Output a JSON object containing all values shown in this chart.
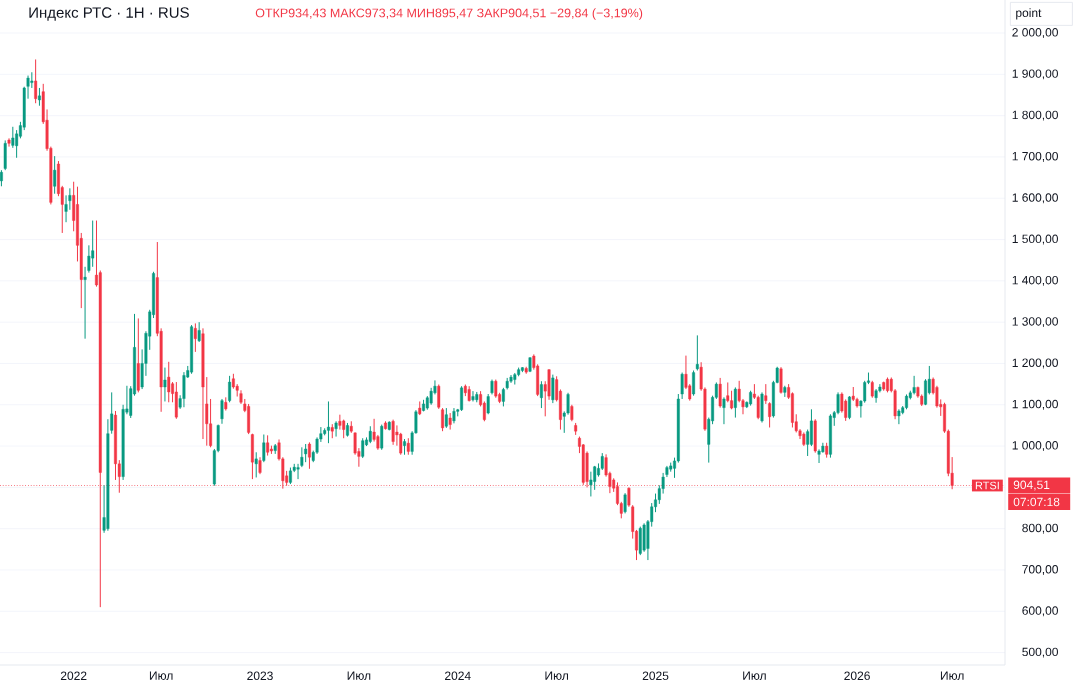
{
  "chart_data": {
    "type": "candlestick",
    "title": "Индекс РТС · 1Н · RUS",
    "subtitle": "ОТКР934,43 МАКС973,34 МИН895,47 ЗАКР904,51 −29,84 (−3,19%)",
    "ylabel": "point",
    "categories": [
      null,
      null,
      null,
      null,
      null,
      null,
      null,
      null,
      null,
      null,
      null,
      null,
      null,
      null,
      null,
      null,
      null,
      null,
      null,
      "2022",
      null,
      null,
      null,
      null,
      null,
      null,
      null,
      null,
      null,
      null,
      null,
      null,
      null,
      null,
      null,
      null,
      null,
      null,
      null,
      null,
      null,
      null,
      "Июл",
      null,
      null,
      null,
      null,
      null,
      null,
      null,
      null,
      null,
      null,
      null,
      null,
      null,
      null,
      null,
      null,
      null,
      null,
      null,
      null,
      null,
      null,
      null,
      null,
      null,
      "2023",
      null,
      null,
      null,
      null,
      null,
      null,
      null,
      null,
      null,
      null,
      null,
      null,
      null,
      null,
      null,
      null,
      null,
      null,
      null,
      null,
      null,
      null,
      null,
      null,
      null,
      "Июл",
      null,
      null,
      null,
      null,
      null,
      null,
      null,
      null,
      null,
      null,
      null,
      null,
      null,
      null,
      null,
      null,
      null,
      null,
      null,
      null,
      null,
      null,
      null,
      null,
      null,
      "2024",
      null,
      null,
      null,
      null,
      null,
      null,
      null,
      null,
      null,
      null,
      null,
      null,
      null,
      null,
      null,
      null,
      null,
      null,
      null,
      null,
      null,
      null,
      null,
      null,
      null,
      "Июл",
      null,
      null,
      null,
      null,
      null,
      null,
      null,
      null,
      null,
      null,
      null,
      null,
      null,
      null,
      null,
      null,
      null,
      null,
      null,
      null,
      null,
      null,
      null,
      null,
      null,
      "2025",
      null,
      null,
      null,
      null,
      null,
      null,
      null,
      null,
      null,
      null,
      null,
      null,
      null,
      null,
      null,
      null,
      null,
      null,
      null,
      null,
      null,
      null,
      null,
      null,
      null,
      "Июл",
      null,
      null,
      null,
      null,
      null,
      null,
      null,
      null,
      null,
      null,
      null,
      null,
      null,
      null,
      null,
      null,
      null,
      null,
      null,
      null,
      null,
      null,
      null,
      null,
      null,
      null,
      "2026",
      null,
      null,
      null,
      null,
      null,
      null,
      null,
      null,
      null,
      null,
      null,
      null,
      null,
      null,
      null,
      null,
      null,
      null,
      null,
      null,
      null,
      null,
      null,
      null,
      "Июл"
    ],
    "ohlc": [
      [
        1642,
        1668,
        1629,
        1663
      ],
      [
        1672,
        1740,
        1668,
        1733
      ],
      [
        1741,
        1745,
        1725,
        1733
      ],
      [
        1728,
        1773,
        1722,
        1746
      ],
      [
        1727,
        1765,
        1698,
        1756
      ],
      [
        1750,
        1785,
        1745,
        1776
      ],
      [
        1772,
        1870,
        1765,
        1867
      ],
      [
        1871,
        1897,
        1841,
        1891
      ],
      [
        1880,
        1905,
        1867,
        1884
      ],
      [
        1884,
        1936,
        1830,
        1841
      ],
      [
        1838,
        1867,
        1824,
        1848
      ],
      [
        1858,
        1877,
        1780,
        1785
      ],
      [
        1789,
        1815,
        1715,
        1720
      ],
      [
        1721,
        1725,
        1585,
        1590
      ],
      [
        1629,
        1702,
        1611,
        1668
      ],
      [
        1683,
        1690,
        1605,
        1611
      ],
      [
        1626,
        1630,
        1516,
        1585
      ],
      [
        1568,
        1607,
        1542,
        1585
      ],
      [
        1594,
        1624,
        1572,
        1607
      ],
      [
        1607,
        1640,
        1520,
        1546
      ],
      [
        1585,
        1628,
        1447,
        1486
      ],
      [
        1503,
        1516,
        1334,
        1403
      ],
      [
        1403,
        1434,
        1260,
        1409
      ],
      [
        1425,
        1486,
        1420,
        1460
      ],
      [
        1455,
        1546,
        1434,
        1473
      ],
      [
        1414,
        1546,
        1386,
        1390
      ],
      [
        1420,
        1425,
        610,
        936
      ],
      [
        796,
        905,
        790,
        827
      ],
      [
        800,
        1065,
        795,
        1030
      ],
      [
        1038,
        1130,
        1030,
        1078
      ],
      [
        1075,
        1085,
        918,
        957
      ],
      [
        957,
        966,
        887,
        926
      ],
      [
        926,
        1100,
        918,
        1089
      ],
      [
        1082,
        1146,
        1077,
        1090
      ],
      [
        1074,
        1145,
        1068,
        1139
      ],
      [
        1126,
        1320,
        1122,
        1239
      ],
      [
        1200,
        1309,
        1130,
        1135
      ],
      [
        1143,
        1234,
        1138,
        1200
      ],
      [
        1200,
        1278,
        1170,
        1273
      ],
      [
        1266,
        1330,
        1233,
        1325
      ],
      [
        1318,
        1422,
        1310,
        1418
      ],
      [
        1408,
        1494,
        1266,
        1273
      ],
      [
        1278,
        1285,
        1083,
        1143
      ],
      [
        1143,
        1190,
        1108,
        1160
      ],
      [
        1167,
        1204,
        1106,
        1131
      ],
      [
        1151,
        1155,
        1106,
        1127
      ],
      [
        1131,
        1155,
        1066,
        1070
      ],
      [
        1094,
        1123,
        1090,
        1115
      ],
      [
        1115,
        1179,
        1094,
        1171
      ],
      [
        1167,
        1194,
        1165,
        1183
      ],
      [
        1179,
        1293,
        1175,
        1289
      ],
      [
        1285,
        1297,
        1228,
        1260
      ],
      [
        1255,
        1300,
        1252,
        1280
      ],
      [
        1272,
        1285,
        1017,
        1143
      ],
      [
        1102,
        1167,
        1001,
        1054
      ],
      [
        1054,
        1114,
        997,
        1001
      ],
      [
        908,
        993,
        904,
        989
      ],
      [
        989,
        1052,
        985,
        1050
      ],
      [
        1066,
        1114,
        1054,
        1110
      ],
      [
        1106,
        1118,
        1086,
        1090
      ],
      [
        1110,
        1170,
        1106,
        1155
      ],
      [
        1163,
        1175,
        1139,
        1143
      ],
      [
        1145,
        1150,
        1120,
        1135
      ],
      [
        1127,
        1135,
        1102,
        1106
      ],
      [
        1102,
        1114,
        1082,
        1086
      ],
      [
        1096,
        1102,
        1029,
        1033
      ],
      [
        1028,
        1030,
        920,
        961
      ],
      [
        957,
        985,
        924,
        969
      ],
      [
        965,
        973,
        932,
        936
      ],
      [
        965,
        1028,
        961,
        1008
      ],
      [
        1008,
        1026,
        977,
        985
      ],
      [
        993,
        1001,
        981,
        988
      ],
      [
        989,
        1005,
        981,
        1001
      ],
      [
        1008,
        1016,
        965,
        969
      ],
      [
        969,
        973,
        897,
        916
      ],
      [
        928,
        940,
        904,
        912
      ],
      [
        912,
        948,
        908,
        940
      ],
      [
        941,
        957,
        937,
        949
      ],
      [
        944,
        957,
        920,
        948
      ],
      [
        953,
        997,
        949,
        973
      ],
      [
        981,
        1005,
        961,
        993
      ],
      [
        1005,
        1009,
        945,
        973
      ],
      [
        965,
        989,
        961,
        985
      ],
      [
        985,
        1021,
        981,
        1017
      ],
      [
        1017,
        1046,
        1010,
        1030
      ],
      [
        1030,
        1043,
        1026,
        1038
      ],
      [
        1038,
        1108,
        1007,
        1046
      ],
      [
        1045,
        1053,
        1019,
        1036
      ],
      [
        1042,
        1060,
        1023,
        1056
      ],
      [
        1060,
        1076,
        1040,
        1050
      ],
      [
        1061,
        1064,
        1019,
        1040
      ],
      [
        1026,
        1056,
        1023,
        1050
      ],
      [
        1048,
        1060,
        1032,
        1036
      ],
      [
        1032,
        1033,
        979,
        983
      ],
      [
        987,
        995,
        950,
        975
      ],
      [
        975,
        1019,
        971,
        1013
      ],
      [
        1003,
        1021,
        1000,
        1015
      ],
      [
        1011,
        1048,
        1007,
        1036
      ],
      [
        1034,
        1066,
        1011,
        1016
      ],
      [
        1023,
        1027,
        991,
        995
      ],
      [
        995,
        1052,
        991,
        1048
      ],
      [
        1056,
        1060,
        1040,
        1042
      ],
      [
        1040,
        1060,
        1038,
        1058
      ],
      [
        1060,
        1064,
        1003,
        1011
      ],
      [
        1034,
        1050,
        1001,
        1027
      ],
      [
        1029,
        1032,
        979,
        983
      ],
      [
        1001,
        1017,
        979,
        1011
      ],
      [
        1007,
        1019,
        979,
        987
      ],
      [
        987,
        1036,
        979,
        1032
      ],
      [
        1032,
        1087,
        1030,
        1083
      ],
      [
        1092,
        1108,
        1075,
        1078
      ],
      [
        1086,
        1112,
        1084,
        1102
      ],
      [
        1092,
        1121,
        1088,
        1117
      ],
      [
        1104,
        1141,
        1100,
        1133
      ],
      [
        1129,
        1159,
        1125,
        1145
      ],
      [
        1145,
        1149,
        1090,
        1094
      ],
      [
        1088,
        1092,
        1036,
        1044
      ],
      [
        1048,
        1092,
        1044,
        1076
      ],
      [
        1068,
        1080,
        1040,
        1052
      ],
      [
        1061,
        1092,
        1055,
        1084
      ],
      [
        1084,
        1090,
        1072,
        1088
      ],
      [
        1088,
        1145,
        1085,
        1141
      ],
      [
        1145,
        1149,
        1121,
        1129
      ],
      [
        1137,
        1145,
        1108,
        1110
      ],
      [
        1112,
        1133,
        1108,
        1120
      ],
      [
        1112,
        1131,
        1106,
        1125
      ],
      [
        1125,
        1133,
        1096,
        1100
      ],
      [
        1104,
        1108,
        1060,
        1064
      ],
      [
        1080,
        1126,
        1077,
        1120
      ],
      [
        1129,
        1161,
        1125,
        1157
      ],
      [
        1157,
        1161,
        1117,
        1121
      ],
      [
        1125,
        1129,
        1104,
        1108
      ],
      [
        1108,
        1141,
        1096,
        1137
      ],
      [
        1141,
        1165,
        1137,
        1157
      ],
      [
        1157,
        1172,
        1153,
        1167
      ],
      [
        1161,
        1177,
        1149,
        1173
      ],
      [
        1173,
        1190,
        1169,
        1185
      ],
      [
        1183,
        1191,
        1179,
        1190
      ],
      [
        1188,
        1192,
        1175,
        1179
      ],
      [
        1181,
        1215,
        1179,
        1214
      ],
      [
        1218,
        1222,
        1185,
        1190
      ],
      [
        1194,
        1198,
        1121,
        1125
      ],
      [
        1117,
        1157,
        1092,
        1149
      ],
      [
        1149,
        1157,
        1072,
        1133
      ],
      [
        1185,
        1186,
        1112,
        1121
      ],
      [
        1112,
        1173,
        1104,
        1165
      ],
      [
        1161,
        1169,
        1108,
        1112
      ],
      [
        1133,
        1137,
        1040,
        1064
      ],
      [
        1072,
        1084,
        1032,
        1080
      ],
      [
        1080,
        1129,
        1076,
        1125
      ],
      [
        1096,
        1100,
        1060,
        1064
      ],
      [
        1050,
        1056,
        1027,
        1036
      ],
      [
        1019,
        1023,
        983,
        999
      ],
      [
        1003,
        1005,
        906,
        912
      ],
      [
        983,
        987,
        900,
        914
      ],
      [
        906,
        938,
        878,
        918
      ],
      [
        914,
        952,
        894,
        950
      ],
      [
        930,
        958,
        926,
        946
      ],
      [
        946,
        983,
        942,
        975
      ],
      [
        972,
        980,
        926,
        930
      ],
      [
        934,
        938,
        886,
        902
      ],
      [
        918,
        922,
        889,
        898
      ],
      [
        902,
        912,
        857,
        861
      ],
      [
        861,
        865,
        825,
        837
      ],
      [
        841,
        886,
        837,
        882
      ],
      [
        898,
        900,
        853,
        857
      ],
      [
        853,
        857,
        776,
        793
      ],
      [
        794,
        797,
        724,
        748
      ],
      [
        740,
        805,
        736,
        801
      ],
      [
        748,
        813,
        744,
        809
      ],
      [
        752,
        821,
        724,
        817
      ],
      [
        817,
        862,
        805,
        853
      ],
      [
        853,
        885,
        840,
        870
      ],
      [
        870,
        905,
        860,
        897
      ],
      [
        897,
        935,
        885,
        925
      ],
      [
        931,
        952,
        925,
        948
      ],
      [
        944,
        960,
        938,
        952
      ],
      [
        946,
        972,
        923,
        964
      ],
      [
        964,
        1126,
        960,
        1114
      ],
      [
        1126,
        1178,
        1114,
        1174
      ],
      [
        1174,
        1219,
        1138,
        1142
      ],
      [
        1146,
        1150,
        1110,
        1114
      ],
      [
        1126,
        1183,
        1122,
        1178
      ],
      [
        1187,
        1268,
        1183,
        1198
      ],
      [
        1191,
        1203,
        1134,
        1138
      ],
      [
        1138,
        1142,
        1037,
        1041
      ],
      [
        1004,
        1069,
        960,
        1065
      ],
      [
        1061,
        1122,
        1053,
        1118
      ],
      [
        1118,
        1154,
        1114,
        1150
      ],
      [
        1150,
        1165,
        1093,
        1097
      ],
      [
        1093,
        1118,
        1053,
        1114
      ],
      [
        1122,
        1154,
        1106,
        1110
      ],
      [
        1110,
        1134,
        1089,
        1092
      ],
      [
        1093,
        1142,
        1069,
        1138
      ],
      [
        1138,
        1158,
        1106,
        1110
      ],
      [
        1110,
        1114,
        1077,
        1095
      ],
      [
        1095,
        1108,
        1092,
        1106
      ],
      [
        1102,
        1134,
        1098,
        1130
      ],
      [
        1126,
        1150,
        1114,
        1118
      ],
      [
        1118,
        1122,
        1065,
        1069
      ],
      [
        1061,
        1130,
        1057,
        1126
      ],
      [
        1122,
        1150,
        1102,
        1110
      ],
      [
        1103,
        1106,
        1045,
        1071
      ],
      [
        1073,
        1158,
        1069,
        1154
      ],
      [
        1154,
        1192,
        1152,
        1189
      ],
      [
        1187,
        1191,
        1127,
        1130
      ],
      [
        1130,
        1146,
        1119,
        1142
      ],
      [
        1142,
        1150,
        1114,
        1118
      ],
      [
        1127,
        1130,
        1045,
        1057
      ],
      [
        1059,
        1077,
        1033,
        1037
      ],
      [
        1037,
        1041,
        1017,
        1025
      ],
      [
        1029,
        1033,
        1000,
        1004
      ],
      [
        1004,
        1040,
        976,
        1035
      ],
      [
        1004,
        1089,
        1000,
        1061
      ],
      [
        1061,
        1065,
        984,
        988
      ],
      [
        980,
        992,
        959,
        988
      ],
      [
        986,
        1008,
        984,
        1000
      ],
      [
        1000,
        1008,
        972,
        980
      ],
      [
        980,
        1077,
        972,
        1073
      ],
      [
        1069,
        1085,
        1049,
        1081
      ],
      [
        1081,
        1130,
        1077,
        1125
      ],
      [
        1126,
        1130,
        1081,
        1085
      ],
      [
        1109,
        1113,
        1061,
        1069
      ],
      [
        1069,
        1121,
        1065,
        1119
      ],
      [
        1121,
        1143,
        1109,
        1113
      ],
      [
        1113,
        1117,
        1093,
        1097
      ],
      [
        1097,
        1111,
        1069,
        1109
      ],
      [
        1109,
        1158,
        1105,
        1154
      ],
      [
        1154,
        1178,
        1150,
        1158
      ],
      [
        1154,
        1158,
        1117,
        1121
      ],
      [
        1117,
        1138,
        1105,
        1134
      ],
      [
        1134,
        1150,
        1130,
        1143
      ],
      [
        1154,
        1156,
        1134,
        1138
      ],
      [
        1162,
        1166,
        1130,
        1134
      ],
      [
        1162,
        1166,
        1130,
        1134
      ],
      [
        1134,
        1138,
        1065,
        1073
      ],
      [
        1073,
        1089,
        1053,
        1085
      ],
      [
        1081,
        1097,
        1077,
        1093
      ],
      [
        1093,
        1125,
        1089,
        1121
      ],
      [
        1117,
        1134,
        1113,
        1129
      ],
      [
        1129,
        1170,
        1125,
        1142
      ],
      [
        1142,
        1144,
        1117,
        1121
      ],
      [
        1121,
        1125,
        1097,
        1101
      ],
      [
        1101,
        1162,
        1099,
        1158
      ],
      [
        1129,
        1194,
        1125,
        1162
      ],
      [
        1162,
        1166,
        1125,
        1129
      ],
      [
        1142,
        1146,
        1093,
        1097
      ],
      [
        1101,
        1113,
        1073,
        1095
      ],
      [
        1101,
        1105,
        1032,
        1036
      ],
      [
        1036,
        1040,
        927,
        934
      ],
      [
        934.43,
        973.34,
        895.47,
        904.51
      ]
    ],
    "colors": [
      "#089981",
      "#089981",
      "#f23645",
      "#089981",
      "#089981",
      "#089981",
      "#089981",
      "#089981",
      "#089981",
      "#f23645",
      "#089981",
      "#f23645",
      "#f23645",
      "#f23645",
      "#089981",
      "#f23645",
      "#f23645",
      "#089981",
      "#089981",
      "#f23645",
      "#f23645",
      "#f23645",
      "#089981",
      "#089981",
      "#089981",
      "#f23645",
      "#f23645",
      "#089981",
      "#089981",
      "#089981",
      "#f23645",
      "#f23645",
      "#089981",
      "#089981",
      "#089981",
      "#089981",
      "#f23645",
      "#089981",
      "#089981",
      "#089981",
      "#089981",
      "#f23645",
      "#f23645",
      "#089981",
      "#f23645",
      "#f23645",
      "#f23645",
      "#089981",
      "#089981",
      "#089981",
      "#089981",
      "#f23645",
      "#089981",
      "#f23645",
      "#f23645",
      "#f23645",
      "#089981",
      "#089981",
      "#089981",
      "#f23645",
      "#089981",
      "#f23645",
      "#f23645",
      "#f23645",
      "#f23645",
      "#f23645",
      "#f23645",
      "#089981",
      "#f23645",
      "#089981",
      "#f23645",
      "#f23645",
      "#089981",
      "#f23645",
      "#f23645",
      "#f23645",
      "#089981",
      "#089981",
      "#089981",
      "#089981",
      "#089981",
      "#f23645",
      "#089981",
      "#089981",
      "#089981",
      "#089981",
      "#089981",
      "#f23645",
      "#089981",
      "#f23645",
      "#f23645",
      "#089981",
      "#f23645",
      "#f23645",
      "#f23645",
      "#089981",
      "#089981",
      "#089981",
      "#f23645",
      "#f23645",
      "#089981",
      "#f23645",
      "#089981",
      "#f23645",
      "#f23645",
      "#f23645",
      "#089981",
      "#f23645",
      "#089981",
      "#089981",
      "#f23645",
      "#089981",
      "#089981",
      "#089981",
      "#089981",
      "#f23645",
      "#f23645",
      "#089981",
      "#f23645",
      "#089981",
      "#089981",
      "#089981",
      "#f23645",
      "#f23645",
      "#089981",
      "#089981",
      "#f23645",
      "#f23645",
      "#089981",
      "#089981",
      "#f23645",
      "#f23645",
      "#089981",
      "#089981",
      "#089981",
      "#089981",
      "#089981",
      "#089981",
      "#f23645",
      "#089981",
      "#f23645",
      "#f23645",
      "#089981",
      "#f23645",
      "#f23645",
      "#089981",
      "#f23645",
      "#f23645",
      "#089981",
      "#089981",
      "#f23645",
      "#f23645",
      "#f23645",
      "#f23645",
      "#f23645",
      "#089981",
      "#089981",
      "#089981",
      "#089981",
      "#f23645",
      "#f23645",
      "#f23645",
      "#f23645",
      "#f23645",
      "#089981",
      "#f23645",
      "#f23645",
      "#f23645",
      "#089981",
      "#089981",
      "#089981",
      "#089981",
      "#089981",
      "#089981",
      "#089981",
      "#089981",
      "#089981",
      "#089981",
      "#089981",
      "#089981",
      "#f23645",
      "#f23645",
      "#089981",
      "#089981",
      "#f23645",
      "#f23645",
      "#089981",
      "#089981",
      "#089981",
      "#f23645",
      "#089981",
      "#f23645",
      "#f23645",
      "#089981",
      "#f23645",
      "#f23645",
      "#089981",
      "#089981",
      "#f23645",
      "#f23645",
      "#089981",
      "#f23645",
      "#f23645",
      "#089981",
      "#089981",
      "#f23645",
      "#089981",
      "#f23645",
      "#f23645",
      "#f23645",
      "#f23645",
      "#f23645",
      "#089981",
      "#089981",
      "#f23645",
      "#089981",
      "#089981",
      "#f23645",
      "#089981",
      "#089981",
      "#089981",
      "#f23645",
      "#f23645",
      "#089981",
      "#f23645",
      "#f23645",
      "#089981",
      "#089981",
      "#089981",
      "#f23645",
      "#089981",
      "#089981",
      "#f23645",
      "#f23645",
      "#f23645",
      "#f23645",
      "#089981",
      "#089981",
      "#089981",
      "#089981",
      "#089981",
      "#f23645",
      "#f23645",
      "#089981",
      "#089981",
      "#f23645",
      "#f23645",
      "#f23645",
      "#f23645",
      "#f23645",
      "#f23645"
    ],
    "ylim": [
      470,
      2080
    ],
    "yticks": [
      {
        "value": 500,
        "label": "500,00"
      },
      {
        "value": 600,
        "label": "600,00"
      },
      {
        "value": 700,
        "label": "700,00"
      },
      {
        "value": 800,
        "label": "800,00"
      },
      {
        "value": 900,
        "label": null
      },
      {
        "value": 1000,
        "label": "1 000,00"
      },
      {
        "value": 1100,
        "label": "1 100,00"
      },
      {
        "value": 1200,
        "label": "1 200,00"
      },
      {
        "value": 1300,
        "label": "1 300,00"
      },
      {
        "value": 1400,
        "label": "1 400,00"
      },
      {
        "value": 1500,
        "label": "1 500,00"
      },
      {
        "value": 1600,
        "label": "1 600,00"
      },
      {
        "value": 1700,
        "label": "1 700,00"
      },
      {
        "value": 1800,
        "label": "1 800,00"
      },
      {
        "value": 1900,
        "label": "1 900,00"
      },
      {
        "value": 2000,
        "label": "2 000,00"
      }
    ],
    "grid": "y",
    "ref_lines": [
      {
        "axis": "y",
        "value": 904.51,
        "label": "904,51",
        "color": "#f23645",
        "line_style": "dotted"
      }
    ],
    "annotations": [
      {
        "text": "RTSI",
        "y": 904.51
      },
      "07:07:18"
    ]
  }
}
